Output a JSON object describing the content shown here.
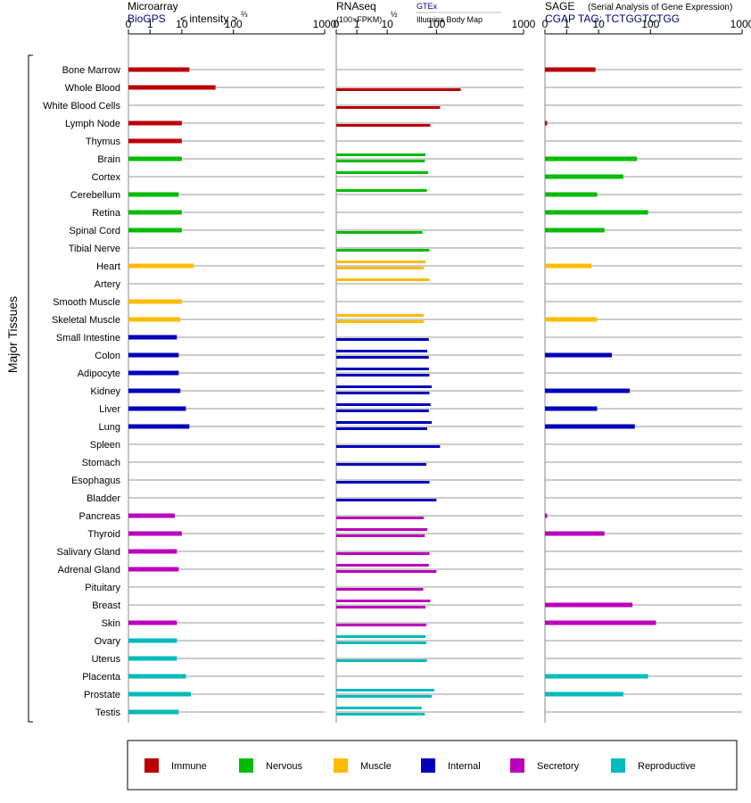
{
  "panels": [
    {
      "id": "microarray",
      "title": "Microarray",
      "subtitle": "BioGPS",
      "subtitle_extra": "< intensity >",
      "exponent": "⅔",
      "link_color": "#000080"
    },
    {
      "id": "rnaseq",
      "title": "RNAseq",
      "subtitle": "(100×FPKM)",
      "exponent": "½",
      "source_top": "GTEx",
      "source_bottom": "Illumina Body Map",
      "link_color": "#000080"
    },
    {
      "id": "sage",
      "title": "SAGE",
      "subtitle_extra": "(Serial Analysis of Gene Expression)",
      "subtitle": "CGAP TAG: TCTGGTCTGG",
      "link_color": "#000080"
    }
  ],
  "axis_ticks": [
    "0",
    "1",
    "10",
    "100",
    "1000"
  ],
  "y_axis_title": "Major Tissues",
  "legend": [
    {
      "label": "Immune",
      "color": "#bb0000"
    },
    {
      "label": "Nervous",
      "color": "#00bb00"
    },
    {
      "label": "Muscle",
      "color": "#ffbb00"
    },
    {
      "label": "Internal",
      "color": "#0000bb"
    },
    {
      "label": "Secretory",
      "color": "#bb00bb"
    },
    {
      "label": "Reproductive",
      "color": "#00bbbb"
    }
  ],
  "chart_data": {
    "type": "bar",
    "orientation": "horizontal",
    "x_scale": "pseudo-log (0,1,10,100,1000)",
    "xlim": [
      0,
      1000
    ],
    "categories": [
      "Bone Marrow",
      "Whole Blood",
      "White Blood Cells",
      "Lymph Node",
      "Thymus",
      "Brain",
      "Cortex",
      "Cerebellum",
      "Retina",
      "Spinal Cord",
      "Tibial Nerve",
      "Heart",
      "Artery",
      "Smooth Muscle",
      "Skeletal Muscle",
      "Small Intestine",
      "Colon",
      "Adipocyte",
      "Kidney",
      "Liver",
      "Lung",
      "Spleen",
      "Stomach",
      "Esophagus",
      "Bladder",
      "Pancreas",
      "Thyroid",
      "Salivary Gland",
      "Adrenal Gland",
      "Pituitary",
      "Breast",
      "Skin",
      "Ovary",
      "Uterus",
      "Placenta",
      "Prostate",
      "Testis"
    ],
    "groups": [
      "Immune",
      "Immune",
      "Immune",
      "Immune",
      "Immune",
      "Nervous",
      "Nervous",
      "Nervous",
      "Nervous",
      "Nervous",
      "Nervous",
      "Muscle",
      "Muscle",
      "Muscle",
      "Muscle",
      "Internal",
      "Internal",
      "Internal",
      "Internal",
      "Internal",
      "Internal",
      "Internal",
      "Internal",
      "Internal",
      "Internal",
      "Secretory",
      "Secretory",
      "Secretory",
      "Secretory",
      "Secretory",
      "Secretory",
      "Secretory",
      "Reproductive",
      "Reproductive",
      "Reproductive",
      "Reproductive",
      "Reproductive"
    ],
    "series": [
      {
        "name": "Microarray",
        "values": [
          14,
          45,
          null,
          10,
          10,
          10,
          null,
          8,
          10,
          10,
          null,
          17,
          null,
          10,
          9,
          7,
          8,
          8,
          9,
          12,
          14,
          null,
          null,
          null,
          null,
          6,
          10,
          7,
          8,
          null,
          null,
          7,
          7,
          7,
          12,
          15,
          8
        ]
      },
      {
        "name": "GTEx",
        "values": [
          null,
          null,
          null,
          null,
          null,
          60,
          68,
          64,
          null,
          null,
          null,
          60,
          72,
          null,
          55,
          null,
          65,
          70,
          80,
          76,
          80,
          null,
          null,
          null,
          null,
          null,
          65,
          null,
          70,
          null,
          75,
          null,
          60,
          null,
          null,
          90,
          50
        ]
      },
      {
        "name": "Illumina Body Map",
        "values": [
          null,
          190,
          110,
          75,
          null,
          58,
          null,
          null,
          null,
          52,
          72,
          55,
          null,
          null,
          55,
          70,
          70,
          72,
          72,
          70,
          65,
          110,
          62,
          72,
          100,
          55,
          58,
          72,
          100,
          54,
          60,
          62,
          62,
          64,
          null,
          80,
          58
        ]
      },
      {
        "name": "SAGE",
        "values": [
          8,
          null,
          null,
          0.1,
          null,
          55,
          30,
          9,
          90,
          13,
          null,
          6,
          null,
          null,
          9,
          null,
          18,
          null,
          40,
          9,
          50,
          null,
          null,
          null,
          null,
          0.1,
          13,
          null,
          null,
          null,
          45,
          115,
          null,
          null,
          90,
          30,
          null
        ]
      }
    ]
  }
}
